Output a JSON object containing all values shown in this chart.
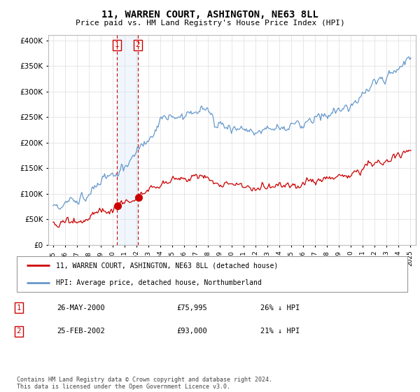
{
  "title": "11, WARREN COURT, ASHINGTON, NE63 8LL",
  "subtitle": "Price paid vs. HM Land Registry's House Price Index (HPI)",
  "legend_line1": "11, WARREN COURT, ASHINGTON, NE63 8LL (detached house)",
  "legend_line2": "HPI: Average price, detached house, Northumberland",
  "sale1_date": "26-MAY-2000",
  "sale1_price": "£75,995",
  "sale1_hpi": "26% ↓ HPI",
  "sale1_year": 2000.38,
  "sale1_value": 75995,
  "sale2_date": "25-FEB-2002",
  "sale2_price": "£93,000",
  "sale2_hpi": "21% ↓ HPI",
  "sale2_year": 2002.13,
  "sale2_value": 93000,
  "footer": "Contains HM Land Registry data © Crown copyright and database right 2024.\nThis data is licensed under the Open Government Licence v3.0.",
  "red_color": "#cc0000",
  "blue_color": "#6699cc",
  "shade_color": "#d0e4f7",
  "ylim_min": 0,
  "ylim_max": 410000,
  "xlim_min": 1994.6,
  "xlim_max": 2025.5
}
